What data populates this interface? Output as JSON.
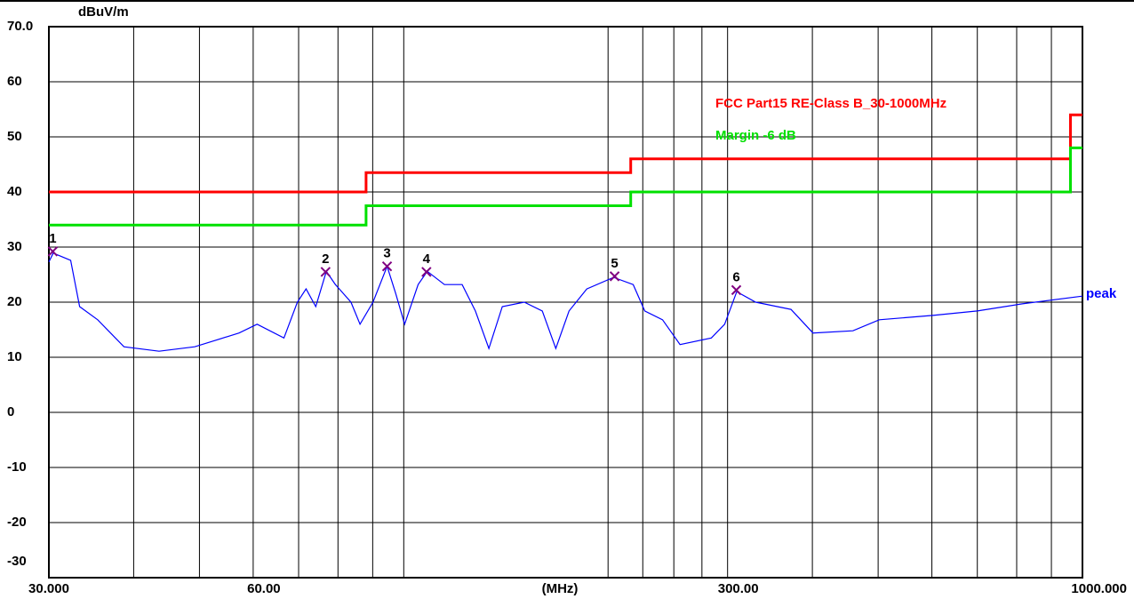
{
  "chart_data": {
    "type": "line",
    "y_label": "dBuV/m",
    "x_label": "(MHz)",
    "x_scale": "log",
    "xlim": [
      30,
      1000
    ],
    "ylim": [
      -30,
      70
    ],
    "yticks": [
      {
        "value": 70,
        "label": "70.0"
      },
      60,
      50,
      40,
      30,
      20,
      10,
      0,
      -10,
      -20,
      -30
    ],
    "xticks": [
      {
        "value": 30,
        "label": "30.000"
      },
      {
        "value": 40,
        "label": null
      },
      {
        "value": 50,
        "label": null
      },
      {
        "value": 60,
        "label": "60.00"
      },
      {
        "value": 70,
        "label": null
      },
      {
        "value": 80,
        "label": null
      },
      {
        "value": 90,
        "label": null
      },
      {
        "value": 100,
        "label": null
      },
      {
        "value": 200,
        "label": null
      },
      {
        "value": 225,
        "label": null
      },
      {
        "value": 250,
        "label": null
      },
      {
        "value": 275,
        "label": null
      },
      {
        "value": 300,
        "label": "300.00"
      },
      {
        "value": 400,
        "label": null
      },
      {
        "value": 500,
        "label": null
      },
      {
        "value": 600,
        "label": null
      },
      {
        "value": 700,
        "label": null
      },
      {
        "value": 800,
        "label": null
      },
      {
        "value": 900,
        "label": null
      },
      {
        "value": 1000,
        "label": "1000.000"
      }
    ],
    "grid": true,
    "series": [
      {
        "name": "FCC Part15 RE-Class B_30-1000MHz",
        "color": "#ff0000",
        "x": [
          30,
          88,
          88,
          216,
          216,
          960,
          960,
          1000
        ],
        "values": [
          40,
          40,
          43.5,
          43.5,
          46,
          46,
          54,
          54
        ]
      },
      {
        "name": "Margin -6 dB",
        "color": "#00e000",
        "x": [
          30,
          88,
          88,
          216,
          216,
          960,
          960,
          1000
        ],
        "values": [
          34,
          34,
          37.5,
          37.5,
          40,
          40,
          48,
          48
        ]
      },
      {
        "name": "peak",
        "color": "#0000ff",
        "x": [
          30,
          30.45,
          32.3,
          33.3,
          35.4,
          38.7,
          43.6,
          49.2,
          57.2,
          60.8,
          66.6,
          69.7,
          71.8,
          74.2,
          76.9,
          79.3,
          83.6,
          86.2,
          90.1,
          94.5,
          97.3,
          100.3,
          105,
          108.3,
          114.8,
          121.9,
          127.5,
          133.5,
          139.7,
          150.5,
          160,
          167.5,
          175.2,
          186.1,
          203.8,
          217.8,
          226.5,
          240.6,
          255.3,
          283.9,
          297,
          309.5,
          330,
          372,
          400.8,
          459,
          502,
          602,
          700,
          815,
          1000
        ],
        "values": [
          27.3,
          28.9,
          27.6,
          19.2,
          16.8,
          11.9,
          11.1,
          11.9,
          14.4,
          16.0,
          13.5,
          20,
          22.4,
          19.2,
          25.6,
          23.2,
          20,
          16,
          20,
          26.5,
          21.6,
          16,
          23.2,
          25.6,
          23.2,
          23.2,
          18.4,
          11.6,
          19.2,
          20,
          18.4,
          11.6,
          18.4,
          22.4,
          24.5,
          23.2,
          18.4,
          16.8,
          12.3,
          13.5,
          16,
          21.9,
          20,
          18.7,
          14.4,
          14.8,
          16.8,
          17.6,
          18.4,
          19.7,
          21.1
        ]
      }
    ],
    "markers": [
      {
        "label": "1",
        "x": 30.4,
        "y": 29.2
      },
      {
        "label": "2",
        "x": 76.7,
        "y": 25.5
      },
      {
        "label": "3",
        "x": 94.5,
        "y": 26.5
      },
      {
        "label": "4",
        "x": 108,
        "y": 25.5
      },
      {
        "label": "5",
        "x": 204.5,
        "y": 24.7
      },
      {
        "label": "6",
        "x": 309,
        "y": 22.2
      }
    ],
    "marker_color": "#800080"
  }
}
